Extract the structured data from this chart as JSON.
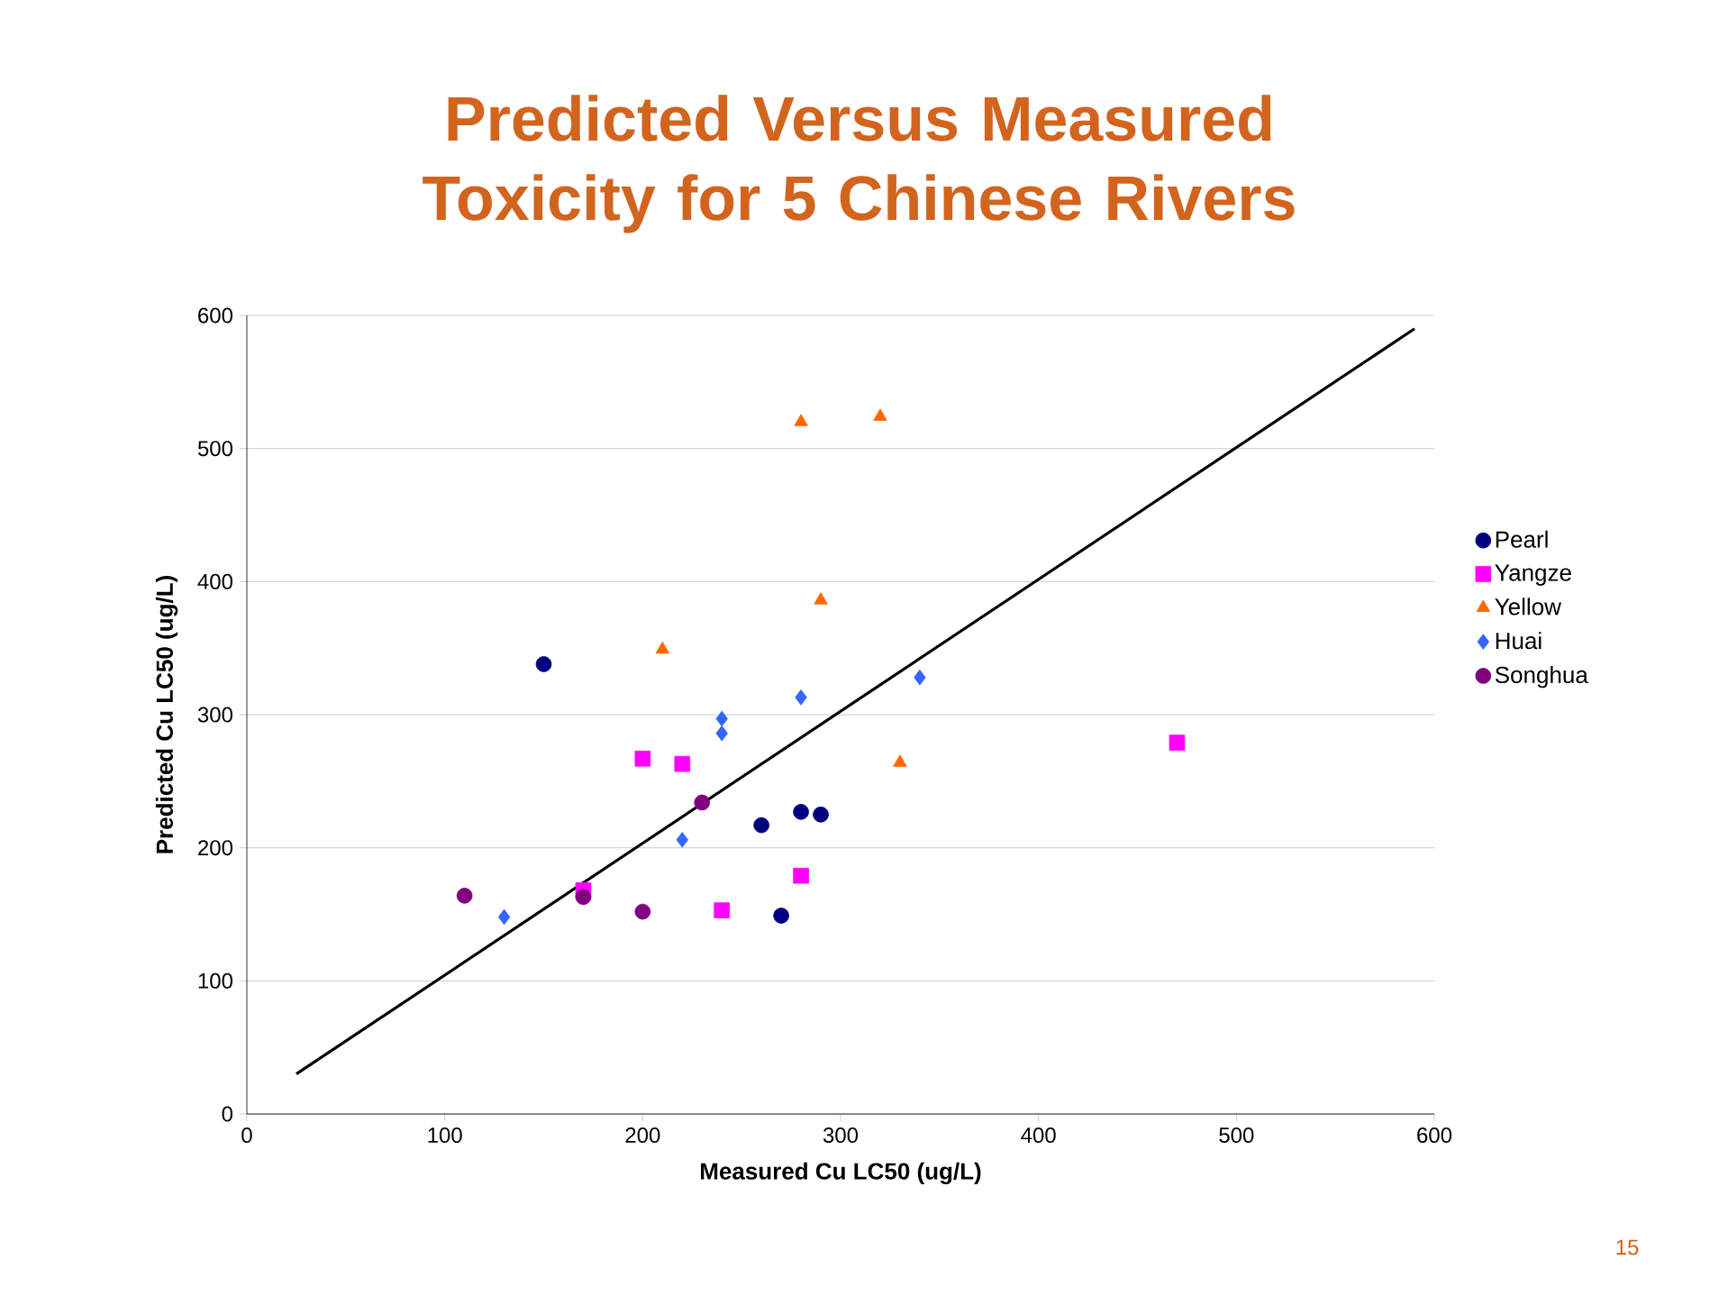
{
  "chart_data": {
    "type": "scatter",
    "title": "Predicted Versus Measured Toxicity for 5 Chinese Rivers",
    "xlabel": "Measured Cu LC50 (ug/L)",
    "ylabel": "Predicted Cu LC50 (ug/L)",
    "xlim": [
      0,
      600
    ],
    "ylim": [
      0,
      600
    ],
    "xticks": [
      0,
      100,
      200,
      300,
      400,
      500,
      600
    ],
    "yticks": [
      0,
      100,
      200,
      300,
      400,
      500,
      600
    ],
    "grid": "y",
    "legend": "right",
    "annotations": [
      "15"
    ],
    "series": [
      {
        "name": "Pearl",
        "color": "#000080",
        "marker": "circle",
        "x": [
          150,
          260,
          280,
          290,
          270
        ],
        "values": [
          338,
          217,
          227,
          225,
          149
        ]
      },
      {
        "name": "Yangze",
        "color": "#ff00ff",
        "marker": "square",
        "x": [
          200,
          220,
          170,
          240,
          280,
          470
        ],
        "values": [
          267,
          263,
          168,
          153,
          179,
          279
        ]
      },
      {
        "name": "Yellow",
        "color": "#ff6600",
        "marker": "triangle",
        "x": [
          210,
          280,
          320,
          290,
          330
        ],
        "values": [
          349,
          520,
          524,
          386,
          264
        ]
      },
      {
        "name": "Huai",
        "color": "#3366ff",
        "marker": "diamond",
        "x": [
          130,
          220,
          240,
          240,
          280,
          340
        ],
        "values": [
          148,
          206,
          297,
          286,
          313,
          328
        ]
      },
      {
        "name": "Songhua",
        "color": "#800080",
        "marker": "circle",
        "x": [
          110,
          170,
          200,
          230
        ],
        "values": [
          164,
          163,
          152,
          234
        ]
      },
      {
        "type": "line",
        "color": "#000000",
        "marker": "none",
        "line_style": "solid",
        "x": [
          25,
          590
        ],
        "values": [
          30,
          590
        ]
      }
    ]
  }
}
